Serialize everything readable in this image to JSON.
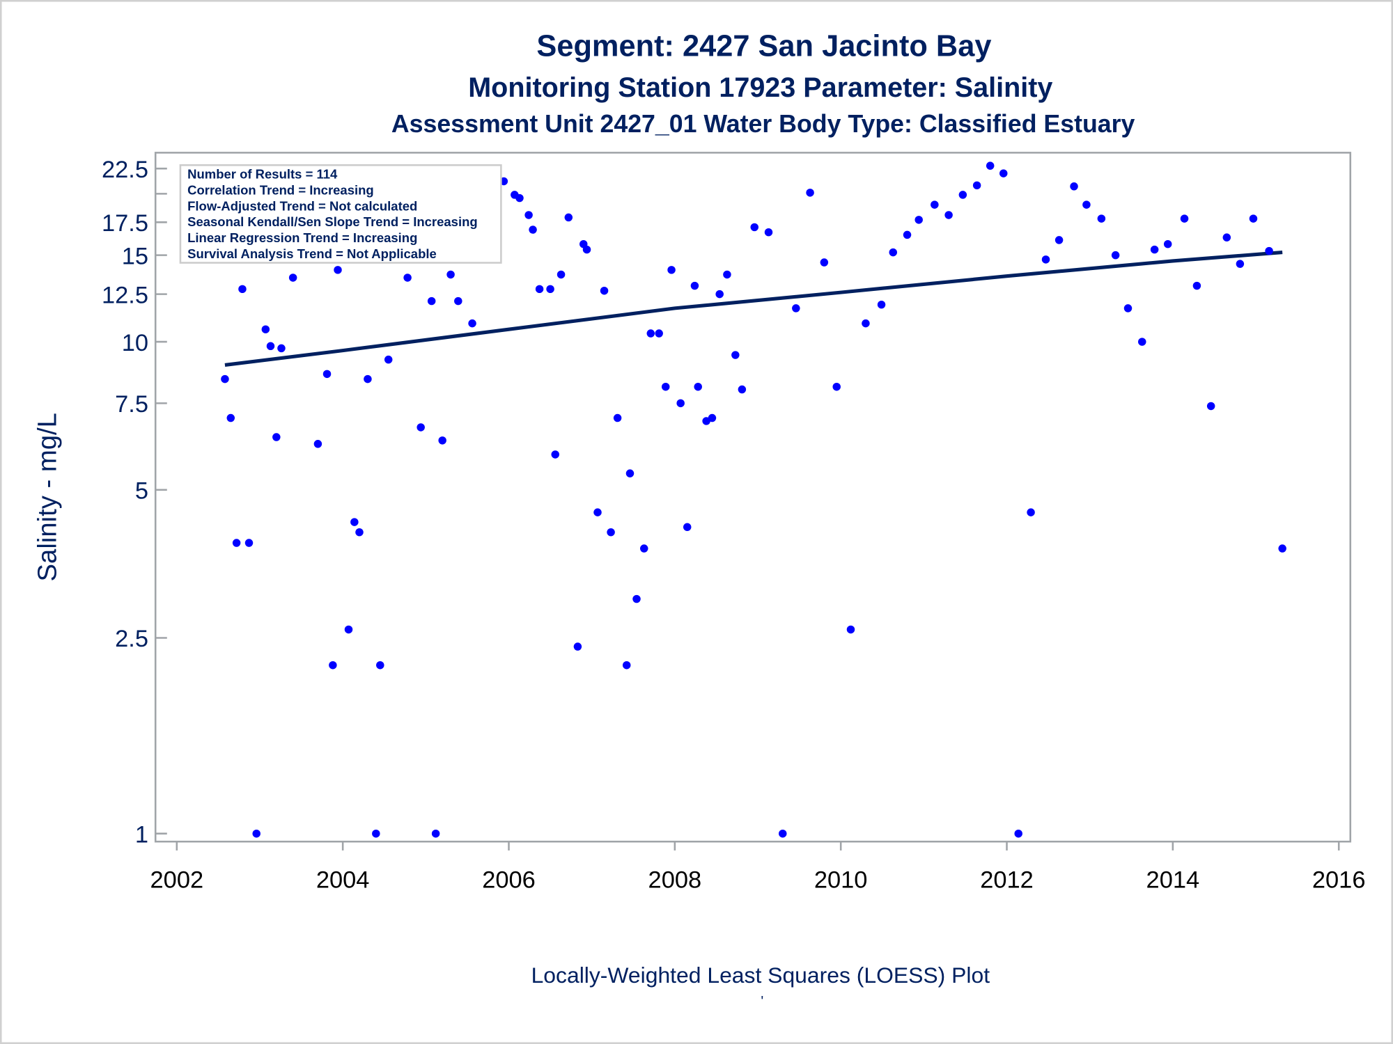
{
  "colors": {
    "title": "#002060",
    "points": "#0000ff",
    "line": "#002060",
    "frame": "#a0a4a8",
    "legend_border": "#cccccc"
  },
  "chart_data": {
    "type": "scatter",
    "title": "Segment: 2427  San Jacinto Bay",
    "subtitle1": "Monitoring Station 17923 Parameter: Salinity",
    "subtitle2": "Assessment Unit 2427_01   Water Body Type: Classified Estuary",
    "ylabel": "Salinity - mg/L",
    "xlabel": "",
    "footnote": "Locally-Weighted Least Squares (LOESS) Plot",
    "footnote2": "'",
    "yscale": "log",
    "ylim": [
      1,
      22.5
    ],
    "xlim": [
      2002,
      2016
    ],
    "yticks": [
      1,
      2.5,
      5,
      7.5,
      10,
      12.5,
      15,
      17.5,
      22.5
    ],
    "ytick_labels": [
      "1",
      "2.5",
      "5",
      "7.5",
      "10",
      "12.5",
      "15",
      "17.5",
      "22.5"
    ],
    "minor_yticks": [
      20
    ],
    "xticks": [
      2002,
      2004,
      2006,
      2008,
      2010,
      2012,
      2014,
      2016
    ],
    "xtick_labels": [
      "2002",
      "2004",
      "2006",
      "2008",
      "2010",
      "2012",
      "2014",
      "2016"
    ],
    "legend_placement": "top-left",
    "legend": [
      "Number of Results = 114",
      "Correlation Trend = Increasing",
      "Flow-Adjusted Trend = Not calculated",
      "Seasonal Kendall/Sen Slope Trend = Increasing",
      "Linear Regression Trend = Increasing",
      "Survival Analysis Trend = Not Applicable"
    ],
    "series": [
      {
        "name": "Salinity",
        "kind": "scatter",
        "x": [
          2002.58,
          2002.65,
          2002.72,
          2002.79,
          2002.87,
          2002.96,
          2003.07,
          2003.13,
          2003.2,
          2003.26,
          2003.4,
          2003.43,
          2003.62,
          2003.7,
          2003.81,
          2003.88,
          2003.94,
          2004.07,
          2004.14,
          2004.2,
          2004.3,
          2004.4,
          2004.45,
          2004.55,
          2004.63,
          2004.7,
          2004.78,
          2004.87,
          2004.94,
          2005.07,
          2005.12,
          2005.2,
          2005.3,
          2005.39,
          2005.47,
          2005.56,
          2005.66,
          2005.71,
          2005.79,
          2005.85,
          2005.94,
          2006.07,
          2006.13,
          2006.24,
          2006.29,
          2006.37,
          2006.5,
          2006.56,
          2006.63,
          2006.72,
          2006.83,
          2006.9,
          2006.94,
          2007.07,
          2007.15,
          2007.23,
          2007.31,
          2007.42,
          2007.46,
          2007.54,
          2007.63,
          2007.71,
          2007.81,
          2007.89,
          2007.96,
          2008.07,
          2008.15,
          2008.24,
          2008.28,
          2008.38,
          2008.45,
          2008.54,
          2008.63,
          2008.73,
          2008.81,
          2008.96,
          2009.13,
          2009.3,
          2009.46,
          2009.63,
          2009.8,
          2009.95,
          2010.12,
          2010.3,
          2010.49,
          2010.63,
          2010.8,
          2010.94,
          2011.13,
          2011.3,
          2011.47,
          2011.64,
          2011.8,
          2011.96,
          2012.14,
          2012.29,
          2012.47,
          2012.63,
          2012.81,
          2012.96,
          2013.14,
          2013.31,
          2013.46,
          2013.63,
          2013.78,
          2013.94,
          2014.14,
          2014.29,
          2014.46,
          2014.65,
          2014.81,
          2014.97,
          2015.16,
          2015.32
        ],
        "y": [
          8.4,
          7.0,
          3.9,
          12.8,
          3.9,
          1,
          10.6,
          9.8,
          6.4,
          9.7,
          13.5,
          15.0,
          17.7,
          6.2,
          8.6,
          2.2,
          14.0,
          2.6,
          4.3,
          4.1,
          8.4,
          1,
          2.2,
          9.2,
          16.1,
          15.3,
          13.5,
          20.1,
          6.7,
          12.1,
          1,
          6.3,
          13.7,
          12.1,
          15.3,
          10.9,
          17.4,
          16.9,
          18.7,
          19.2,
          21.2,
          19.9,
          19.6,
          18.1,
          16.9,
          12.8,
          12.8,
          5.9,
          13.7,
          17.9,
          2.4,
          15.8,
          15.4,
          4.5,
          12.7,
          4.1,
          7.0,
          2.2,
          5.4,
          3.0,
          3.8,
          10.4,
          10.4,
          8.1,
          14.0,
          7.5,
          4.2,
          13.0,
          8.1,
          6.9,
          7.0,
          12.5,
          13.7,
          9.4,
          8.0,
          17.1,
          16.7,
          1,
          11.7,
          20.1,
          14.5,
          8.1,
          2.6,
          10.9,
          11.9,
          15.2,
          16.5,
          17.7,
          19.0,
          18.1,
          19.9,
          20.8,
          22.8,
          22.0,
          1,
          4.5,
          14.7,
          16.1,
          20.7,
          19.0,
          17.8,
          15.0,
          11.7,
          10.0,
          15.4,
          15.8,
          17.8,
          13.0,
          7.4,
          16.3,
          14.4,
          17.8,
          15.3,
          3.8
        ]
      },
      {
        "name": "LOESS",
        "kind": "line",
        "x": [
          2002.58,
          2004.0,
          2006.0,
          2008.0,
          2010.0,
          2012.0,
          2014.0,
          2015.32
        ],
        "y": [
          8.97,
          9.6,
          10.6,
          11.7,
          12.6,
          13.6,
          14.6,
          15.2
        ]
      }
    ]
  }
}
